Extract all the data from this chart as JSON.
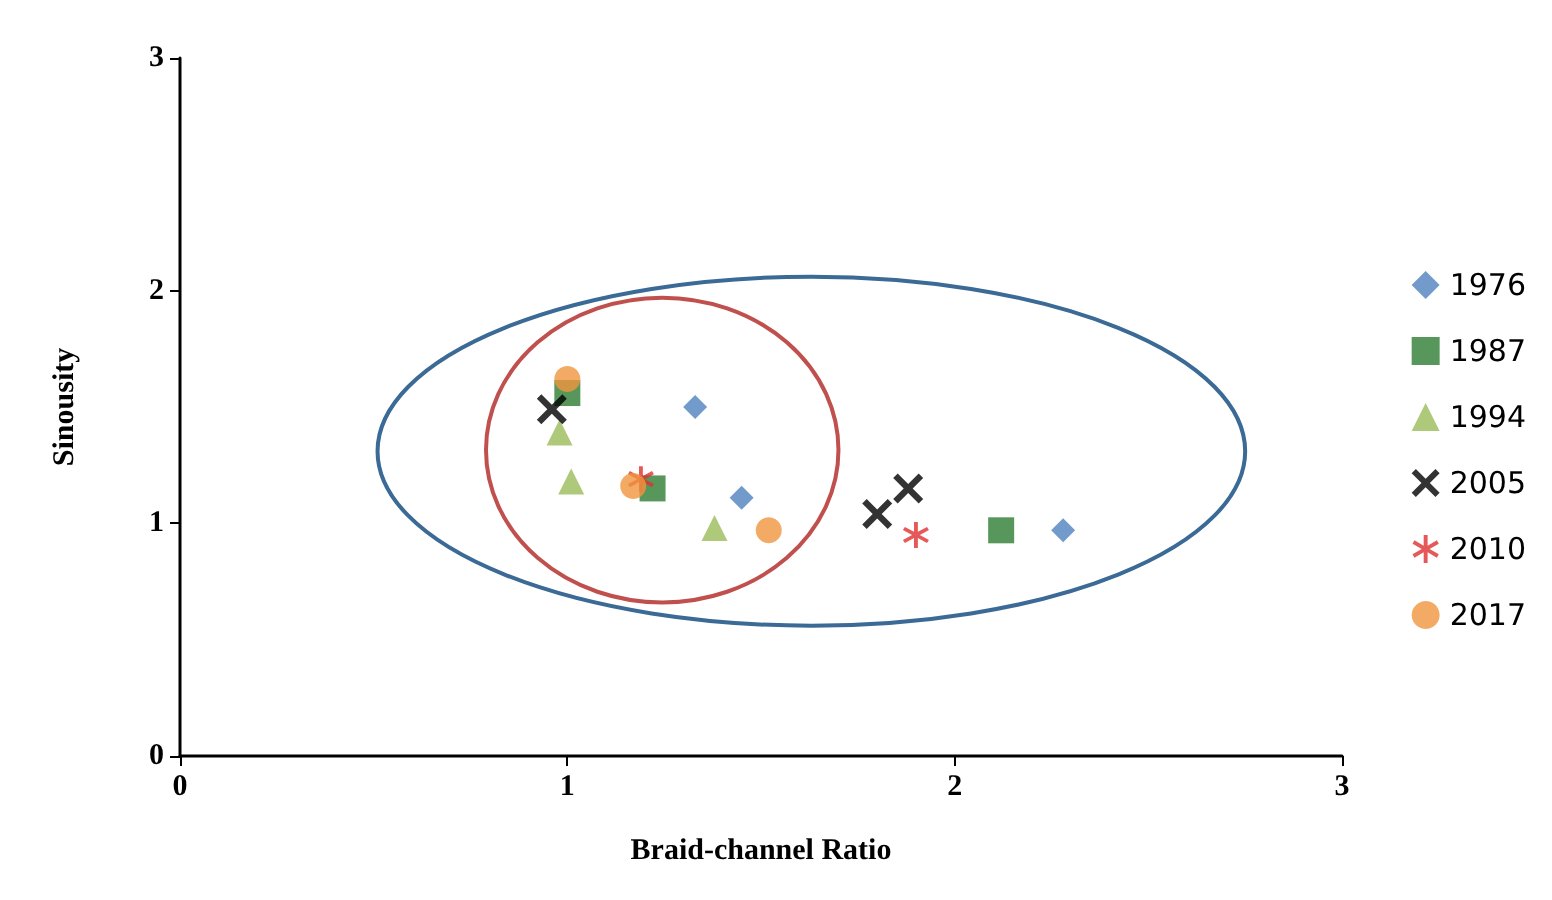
{
  "chart_data": {
    "type": "scatter",
    "xlabel": "Braid-channel Ratio",
    "ylabel": "Sinousity",
    "xlim": [
      0,
      3
    ],
    "ylim": [
      0,
      3
    ],
    "xticks": [
      0,
      1,
      2,
      3
    ],
    "yticks": [
      0,
      1,
      2,
      3
    ],
    "grid": false,
    "legend": "right",
    "series": [
      {
        "name": "1976",
        "color": "#4f81bd",
        "marker": "diamond",
        "x": [
          1.33,
          1.45,
          2.28
        ],
        "values": [
          1.5,
          1.11,
          0.97
        ]
      },
      {
        "name": "1987",
        "color": "#2e7d32",
        "marker": "square",
        "x": [
          1.0,
          1.22,
          2.12
        ],
        "values": [
          1.56,
          1.15,
          0.97
        ]
      },
      {
        "name": "1994",
        "color": "#9bbb59",
        "marker": "triangle",
        "x": [
          0.98,
          1.01,
          1.38
        ],
        "values": [
          1.39,
          1.18,
          0.98
        ]
      },
      {
        "name": "2005",
        "color": "#000000",
        "marker": "cross",
        "x": [
          0.96,
          1.8,
          1.88
        ],
        "values": [
          1.49,
          1.04,
          1.15
        ]
      },
      {
        "name": "2010",
        "color": "#e03030",
        "marker": "star",
        "x": [
          1.19,
          1.9
        ],
        "values": [
          1.19,
          0.95
        ]
      },
      {
        "name": "2017",
        "color": "#f0953f",
        "marker": "circle",
        "x": [
          1.0,
          1.17,
          1.52
        ],
        "values": [
          1.62,
          1.16,
          0.97
        ]
      }
    ]
  }
}
